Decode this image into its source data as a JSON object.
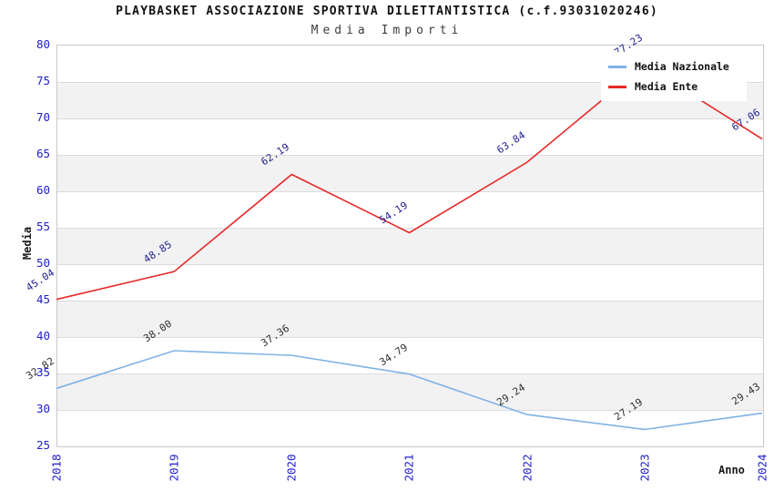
{
  "chart_data": {
    "type": "line",
    "title": "PLAYBASKET ASSOCIAZIONE SPORTIVA DILETTANTISTICA (c.f.93031020246)",
    "subtitle": "Media Importi",
    "xlabel": "Anno",
    "ylabel": "Media",
    "categories": [
      "2018",
      "2019",
      "2020",
      "2021",
      "2022",
      "2023",
      "2024"
    ],
    "series": [
      {
        "name": "Media Nazionale",
        "color": "#7fb2e5",
        "label_color": "#2e2e2e",
        "values": [
          32.82,
          38.0,
          37.36,
          34.79,
          29.24,
          27.19,
          29.43
        ]
      },
      {
        "name": "Media Ente",
        "color": "#e62828",
        "label_color": "#202090",
        "values": [
          45.04,
          48.85,
          62.19,
          54.19,
          63.84,
          77.23,
          67.06
        ]
      }
    ],
    "ylim": [
      25,
      80
    ],
    "ytick_step": 5,
    "grid": true,
    "banded": true,
    "band_color": "#f2f2f2",
    "tick_color": "#2020cc",
    "legend_position": "top-right"
  }
}
